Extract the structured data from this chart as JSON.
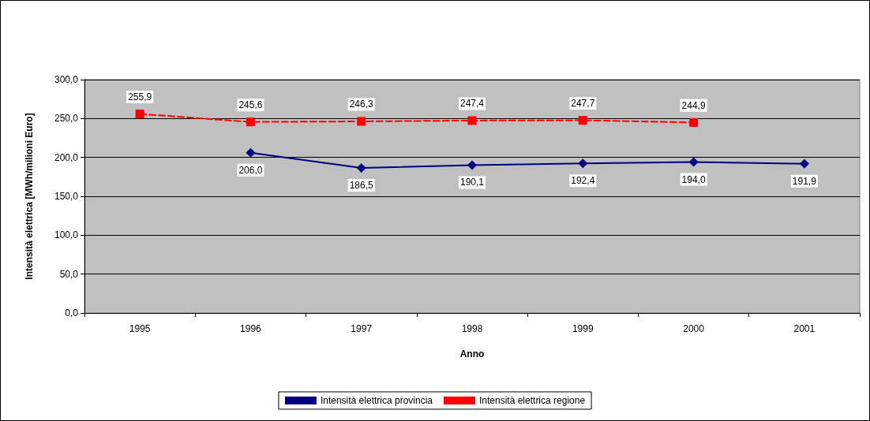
{
  "chart_data": {
    "type": "line",
    "xlabel": "Anno",
    "ylabel": "Intensità elettrica [MWh/milioni Euro]",
    "categories": [
      "1995",
      "1996",
      "1997",
      "1998",
      "1999",
      "2000",
      "2001"
    ],
    "series": [
      {
        "name": "Intensità elettrica provincia",
        "color": "#000080",
        "marker": "diamond",
        "line_style": "solid",
        "values": [
          null,
          206.0,
          186.5,
          190.1,
          192.4,
          194.0,
          191.9
        ],
        "value_labels": [
          null,
          "206,0",
          "186,5",
          "190,1",
          "192,4",
          "194,0",
          "191,9"
        ]
      },
      {
        "name": "Intensità elettrica regione",
        "color": "#ff0000",
        "marker": "square",
        "line_style": "dashed",
        "values": [
          255.9,
          245.6,
          246.3,
          247.4,
          247.7,
          244.9,
          null
        ],
        "value_labels": [
          "255,9",
          "245,6",
          "246,3",
          "247,4",
          "247,7",
          "244,9",
          null
        ]
      }
    ],
    "ylim": [
      0,
      300
    ],
    "yticks": [
      {
        "value": 0,
        "label": "0,0"
      },
      {
        "value": 50,
        "label": "50,0"
      },
      {
        "value": 100,
        "label": "100,0"
      },
      {
        "value": 150,
        "label": "150,0"
      },
      {
        "value": 200,
        "label": "200,0"
      },
      {
        "value": 250,
        "label": "250,0"
      },
      {
        "value": 300,
        "label": "300,0"
      }
    ],
    "grid": "y",
    "legend": "bottom"
  }
}
